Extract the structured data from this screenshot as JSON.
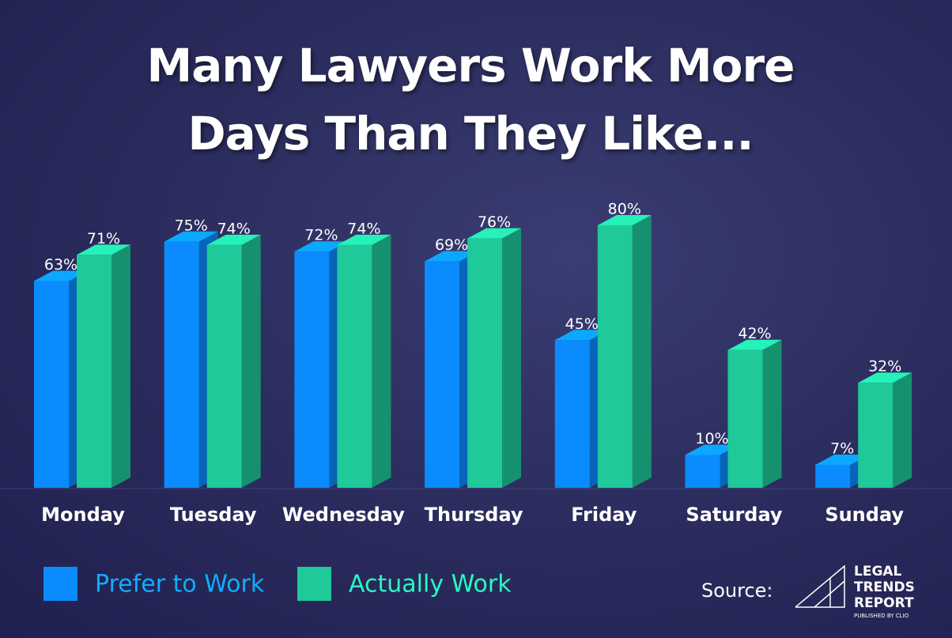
{
  "chart_data": {
    "type": "bar3d",
    "title": "Many Lawyers Work More Days Than They Like...",
    "categories": [
      "Monday",
      "Tuesday",
      "Wednesday",
      "Thursday",
      "Friday",
      "Saturday",
      "Sunday"
    ],
    "series": [
      {
        "name": "Prefer to Work",
        "color": "#0a8cff",
        "values": [
          63,
          75,
          72,
          69,
          45,
          10,
          7
        ],
        "value_labels": [
          "63%",
          "75%",
          "72%",
          "69%",
          "45%",
          "10%",
          "7%"
        ]
      },
      {
        "name": "Actually Work",
        "color": "#1fc99a",
        "values": [
          71,
          74,
          74,
          76,
          80,
          42,
          32
        ],
        "value_labels": [
          "71%",
          "74%",
          "74%",
          "76%",
          "80%",
          "42%",
          "32%"
        ]
      }
    ],
    "legend": "bottom-left"
  },
  "source": {
    "label": "Source:",
    "logo_lines": [
      "LEGAL",
      "TRENDS",
      "REPORT"
    ],
    "tagline": "PUBLISHED BY CLIO"
  }
}
